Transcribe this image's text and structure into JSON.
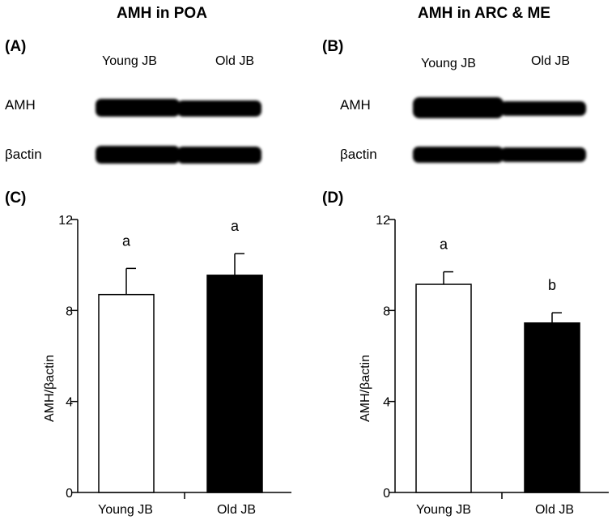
{
  "panels": [
    {
      "title": "AMH in POA",
      "blot_label": "(A)",
      "lanes": [
        "Young JB",
        "Old JB"
      ],
      "rows": [
        "AMH",
        "βactin"
      ]
    },
    {
      "title": "AMH in ARC & ME",
      "blot_label": "(B)",
      "lanes": [
        "Young JB",
        "Old JB"
      ],
      "rows": [
        "AMH",
        "βactin"
      ]
    }
  ],
  "colors": {
    "young_bar": "#ffffff",
    "old_bar": "#000000",
    "band": "#000000"
  },
  "chart_data": [
    {
      "type": "bar",
      "panel_label": "(C)",
      "categories": [
        "Young JB",
        "Old JB"
      ],
      "values": [
        8.7,
        9.55
      ],
      "errors": [
        1.15,
        0.95
      ],
      "significance": [
        "a",
        "a"
      ],
      "ylabel": "AMH/βactin",
      "ylim": [
        0,
        12
      ],
      "yticks": [
        0,
        4,
        8,
        12
      ],
      "bar_colors": [
        "#ffffff",
        "#000000"
      ]
    },
    {
      "type": "bar",
      "panel_label": "(D)",
      "categories": [
        "Young JB",
        "Old JB"
      ],
      "values": [
        9.15,
        7.45
      ],
      "errors": [
        0.55,
        0.45
      ],
      "significance": [
        "a",
        "b"
      ],
      "ylabel": "AMH/βactin",
      "ylim": [
        0,
        12
      ],
      "yticks": [
        0,
        4,
        8,
        12
      ],
      "bar_colors": [
        "#ffffff",
        "#000000"
      ]
    }
  ]
}
